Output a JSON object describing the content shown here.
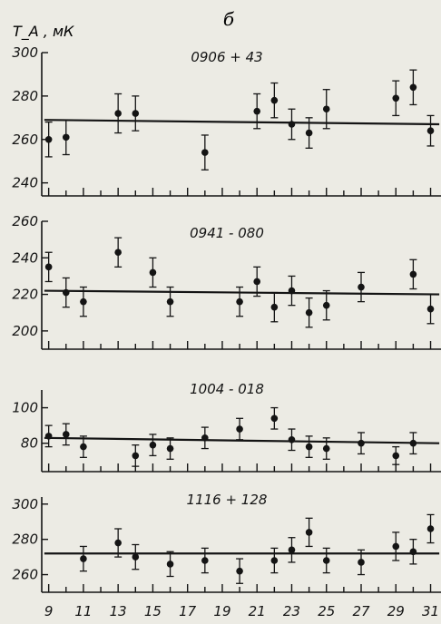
{
  "figure": {
    "panel_letter": "б",
    "y_axis_title": "T_A , мК",
    "colors": {
      "ink": "#141414",
      "paper": "#ecebe4"
    }
  },
  "chart_data": [
    {
      "type": "scatter",
      "title": "0906 + 43",
      "ylabel": "T_A , мК",
      "ylim": [
        234,
        300
      ],
      "yticks": [
        240,
        260,
        280,
        300
      ],
      "xlim": [
        8.6,
        31.6
      ],
      "grid": false,
      "fit_line": {
        "y_start": 269,
        "y_end": 267
      },
      "points": [
        {
          "x": 9,
          "y": 260,
          "err": 8
        },
        {
          "x": 10,
          "y": 261,
          "err": 8
        },
        {
          "x": 13,
          "y": 272,
          "err": 9
        },
        {
          "x": 14,
          "y": 272,
          "err": 8
        },
        {
          "x": 18,
          "y": 254,
          "err": 8
        },
        {
          "x": 21,
          "y": 273,
          "err": 8
        },
        {
          "x": 22,
          "y": 278,
          "err": 8
        },
        {
          "x": 23,
          "y": 267,
          "err": 7
        },
        {
          "x": 24,
          "y": 263,
          "err": 7
        },
        {
          "x": 25,
          "y": 274,
          "err": 9
        },
        {
          "x": 29,
          "y": 279,
          "err": 8
        },
        {
          "x": 30,
          "y": 284,
          "err": 8
        },
        {
          "x": 31,
          "y": 264,
          "err": 7
        }
      ]
    },
    {
      "type": "scatter",
      "title": "0941 - 080",
      "ylim": [
        190,
        260
      ],
      "yticks": [
        200,
        220,
        240,
        260
      ],
      "xlim": [
        8.6,
        31.6
      ],
      "grid": false,
      "fit_line": {
        "y_start": 222,
        "y_end": 220
      },
      "points": [
        {
          "x": 9,
          "y": 235,
          "err": 8
        },
        {
          "x": 10,
          "y": 221,
          "err": 8
        },
        {
          "x": 11,
          "y": 216,
          "err": 8
        },
        {
          "x": 13,
          "y": 243,
          "err": 8
        },
        {
          "x": 15,
          "y": 232,
          "err": 8
        },
        {
          "x": 16,
          "y": 216,
          "err": 8
        },
        {
          "x": 20,
          "y": 216,
          "err": 8
        },
        {
          "x": 21,
          "y": 227,
          "err": 8
        },
        {
          "x": 22,
          "y": 213,
          "err": 8
        },
        {
          "x": 23,
          "y": 222,
          "err": 8
        },
        {
          "x": 24,
          "y": 210,
          "err": 8
        },
        {
          "x": 25,
          "y": 214,
          "err": 8
        },
        {
          "x": 27,
          "y": 224,
          "err": 8
        },
        {
          "x": 30,
          "y": 231,
          "err": 8
        },
        {
          "x": 31,
          "y": 212,
          "err": 8
        }
      ]
    },
    {
      "type": "scatter",
      "title": "1004 - 018",
      "ylim": [
        64,
        110
      ],
      "yticks": [
        80,
        100
      ],
      "xlim": [
        8.6,
        31.6
      ],
      "grid": false,
      "fit_line": {
        "y_start": 83,
        "y_end": 80
      },
      "points": [
        {
          "x": 9,
          "y": 84,
          "err": 6
        },
        {
          "x": 10,
          "y": 85,
          "err": 6
        },
        {
          "x": 11,
          "y": 78,
          "err": 6
        },
        {
          "x": 14,
          "y": 73,
          "err": 6
        },
        {
          "x": 15,
          "y": 79,
          "err": 6
        },
        {
          "x": 16,
          "y": 77,
          "err": 6
        },
        {
          "x": 18,
          "y": 83,
          "err": 6
        },
        {
          "x": 20,
          "y": 88,
          "err": 6
        },
        {
          "x": 22,
          "y": 94,
          "err": 6
        },
        {
          "x": 23,
          "y": 82,
          "err": 6
        },
        {
          "x": 24,
          "y": 78,
          "err": 6
        },
        {
          "x": 25,
          "y": 77,
          "err": 6
        },
        {
          "x": 27,
          "y": 80,
          "err": 6
        },
        {
          "x": 29,
          "y": 73,
          "err": 5
        },
        {
          "x": 30,
          "y": 80,
          "err": 6
        }
      ]
    },
    {
      "type": "scatter",
      "title": "1116 + 128",
      "ylim": [
        250,
        304
      ],
      "yticks": [
        260,
        280,
        300
      ],
      "xlim": [
        8.6,
        31.6
      ],
      "xlabel": "",
      "xticklabels": [
        "9",
        "11",
        "13",
        "15",
        "17",
        "19",
        "21",
        "23",
        "25",
        "27",
        "29",
        "31"
      ],
      "grid": false,
      "fit_line": {
        "y_start": 272,
        "y_end": 272
      },
      "points": [
        {
          "x": 11,
          "y": 269,
          "err": 7
        },
        {
          "x": 13,
          "y": 278,
          "err": 8
        },
        {
          "x": 14,
          "y": 270,
          "err": 7
        },
        {
          "x": 16,
          "y": 266,
          "err": 7
        },
        {
          "x": 18,
          "y": 268,
          "err": 7
        },
        {
          "x": 20,
          "y": 262,
          "err": 7
        },
        {
          "x": 22,
          "y": 268,
          "err": 7
        },
        {
          "x": 23,
          "y": 274,
          "err": 7
        },
        {
          "x": 24,
          "y": 284,
          "err": 8
        },
        {
          "x": 25,
          "y": 268,
          "err": 7
        },
        {
          "x": 27,
          "y": 267,
          "err": 7
        },
        {
          "x": 29,
          "y": 276,
          "err": 8
        },
        {
          "x": 30,
          "y": 273,
          "err": 7
        },
        {
          "x": 31,
          "y": 286,
          "err": 8
        }
      ]
    }
  ]
}
